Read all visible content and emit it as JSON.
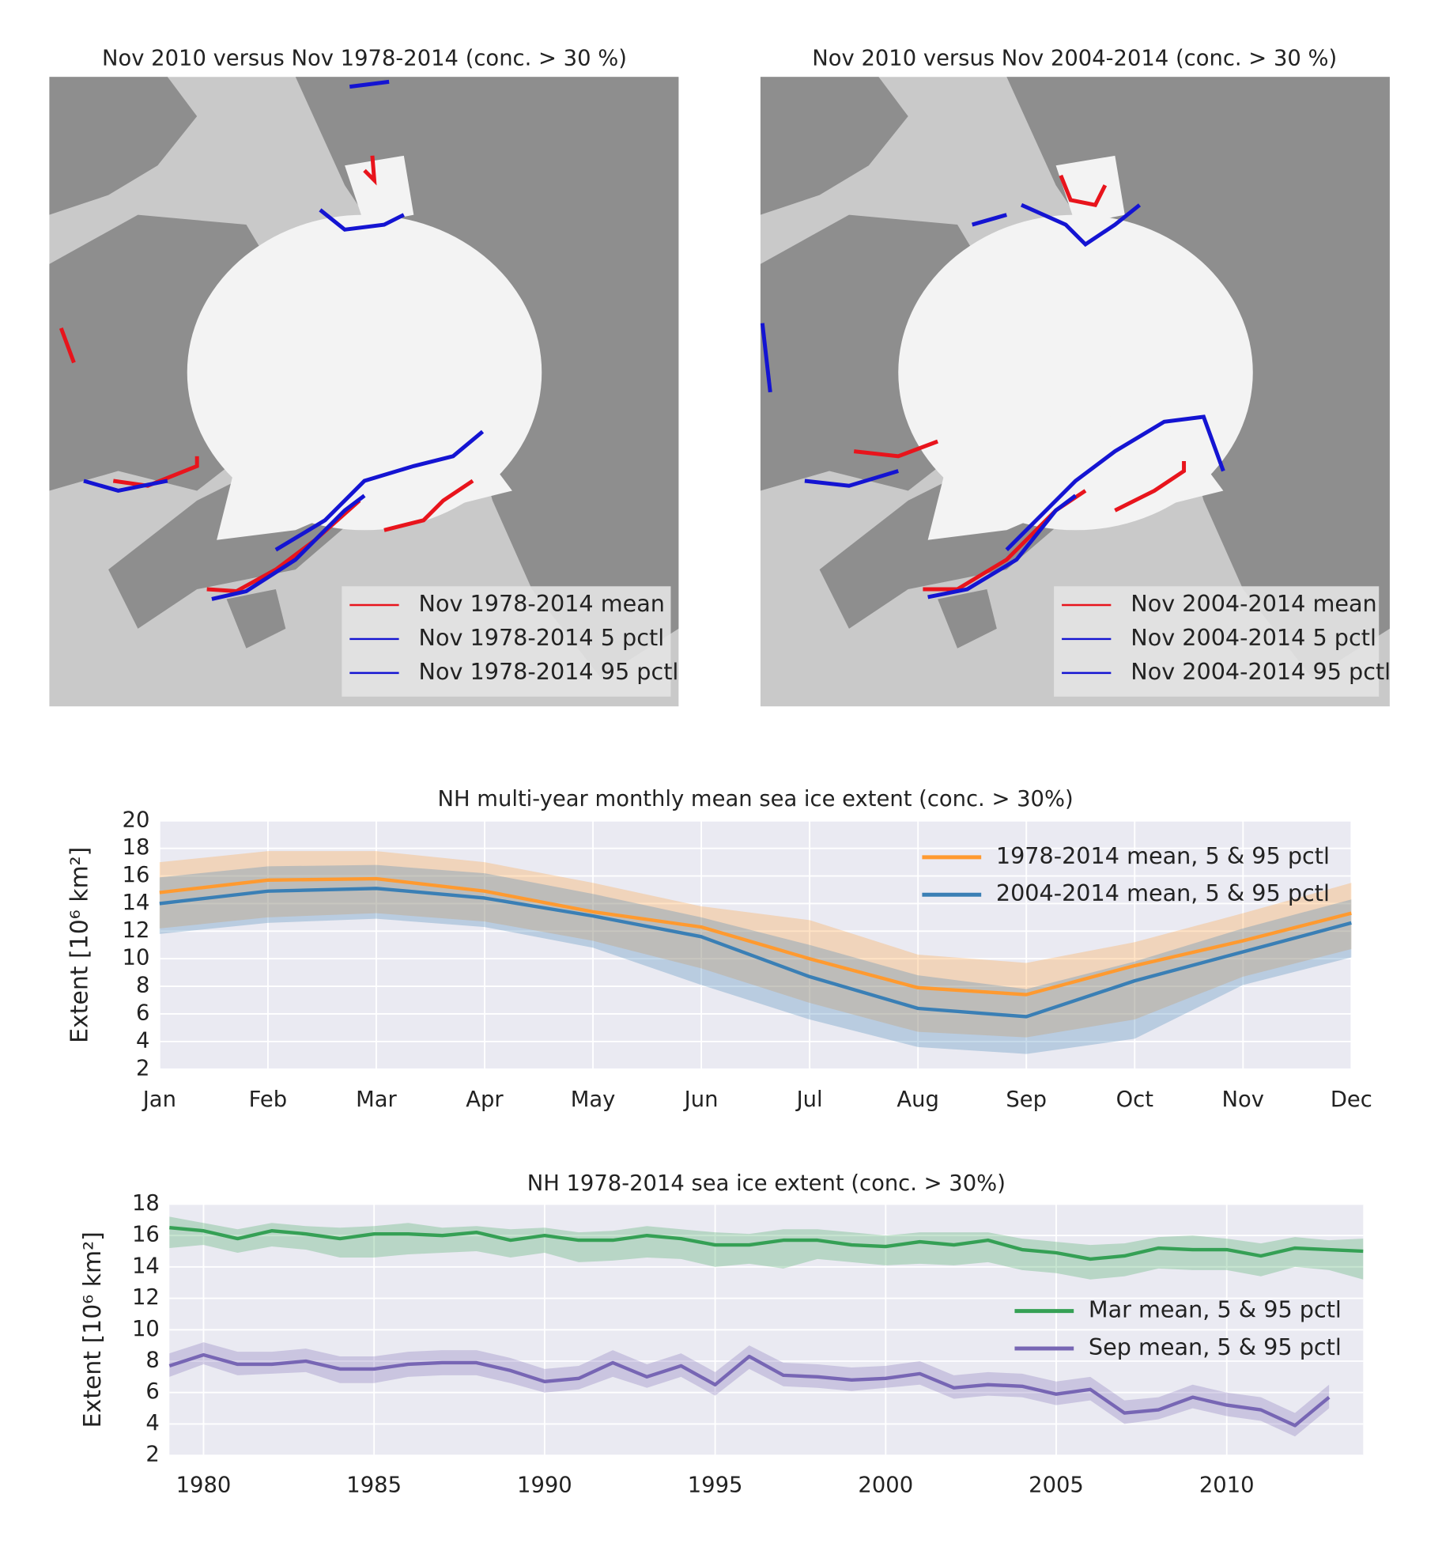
{
  "chart_data": [
    {
      "type": "map",
      "title": "Nov 2010 versus Nov 1978-2014 (conc. > 30 %)",
      "legend_entries": [
        {
          "label": "Nov 1978-2014 mean",
          "color": "#e8141c"
        },
        {
          "label": "Nov 1978-2014 5 pctl",
          "color": "#1414d2"
        },
        {
          "label": "Nov 1978-2014 95 pctl",
          "color": "#1414d2"
        }
      ]
    },
    {
      "type": "map",
      "title": "Nov 2010 versus Nov 2004-2014 (conc. > 30 %)",
      "legend_entries": [
        {
          "label": "Nov 2004-2014 mean",
          "color": "#e8141c"
        },
        {
          "label": "Nov 2004-2014 5 pctl",
          "color": "#1414d2"
        },
        {
          "label": "Nov 2004-2014 95 pctl",
          "color": "#1414d2"
        }
      ]
    },
    {
      "type": "line",
      "title": "NH multi-year monthly mean sea ice extent (conc. > 30%)",
      "y_label": "Extent [10⁶ km²]",
      "categories": [
        "Jan",
        "Feb",
        "Mar",
        "Apr",
        "May",
        "Jun",
        "Jul",
        "Aug",
        "Sep",
        "Oct",
        "Nov",
        "Dec"
      ],
      "series": [
        {
          "name": "1978-2014 mean, 5 & 95 pctl",
          "color": "#ff9a30",
          "values": [
            14.8,
            15.7,
            15.8,
            14.9,
            13.4,
            12.3,
            10.0,
            7.9,
            7.4,
            9.5,
            11.3,
            13.3
          ],
          "lower": [
            12.2,
            13.0,
            13.3,
            12.7,
            11.3,
            9.3,
            6.8,
            4.7,
            4.3,
            5.6,
            8.7,
            10.7
          ],
          "upper": [
            17.0,
            17.8,
            17.8,
            17.0,
            15.5,
            13.8,
            12.8,
            10.3,
            9.7,
            11.2,
            13.3,
            15.5
          ]
        },
        {
          "name": "2004-2014 mean, 5 & 95 pctl",
          "color": "#3a7fb5",
          "values": [
            14.0,
            14.9,
            15.1,
            14.4,
            13.1,
            11.6,
            8.7,
            6.4,
            5.8,
            8.4,
            10.5,
            12.6
          ],
          "lower": [
            11.8,
            12.6,
            12.9,
            12.3,
            10.8,
            8.1,
            5.6,
            3.6,
            3.1,
            4.2,
            8.1,
            10.1
          ],
          "upper": [
            15.9,
            16.7,
            16.8,
            16.2,
            14.7,
            13.0,
            11.0,
            8.8,
            7.8,
            9.8,
            12.2,
            14.3
          ]
        }
      ],
      "ylim": [
        2,
        20
      ],
      "yticks": [
        2,
        4,
        6,
        8,
        10,
        12,
        14,
        16,
        18,
        20
      ],
      "grid": true,
      "legend": "upper right"
    },
    {
      "type": "line",
      "title": "NH 1978-2014 sea ice extent (conc. > 30%)",
      "y_label": "Extent [10⁶ km²]",
      "x": [
        1979,
        1980,
        1981,
        1982,
        1983,
        1984,
        1985,
        1986,
        1987,
        1988,
        1989,
        1990,
        1991,
        1992,
        1993,
        1994,
        1995,
        1996,
        1997,
        1998,
        1999,
        2000,
        2001,
        2002,
        2003,
        2004,
        2005,
        2006,
        2007,
        2008,
        2009,
        2010,
        2011,
        2012,
        2013,
        2014
      ],
      "series": [
        {
          "name": "Mar mean, 5 & 95 pctl",
          "color": "#35a055",
          "values": [
            16.5,
            16.3,
            15.8,
            16.3,
            16.1,
            15.8,
            16.1,
            16.1,
            16.0,
            16.2,
            15.7,
            16.0,
            15.7,
            15.7,
            16.0,
            15.8,
            15.4,
            15.4,
            15.7,
            15.7,
            15.4,
            15.3,
            15.6,
            15.4,
            15.7,
            15.1,
            14.9,
            14.5,
            14.7,
            15.2,
            15.1,
            15.1,
            14.7,
            15.2,
            15.1,
            15.0
          ],
          "lower": [
            15.2,
            15.4,
            14.9,
            15.3,
            15.1,
            14.6,
            14.6,
            14.8,
            14.9,
            15.0,
            14.6,
            14.9,
            14.3,
            14.4,
            14.6,
            14.5,
            14.0,
            14.2,
            13.9,
            14.5,
            14.3,
            14.1,
            14.2,
            14.1,
            14.3,
            13.8,
            13.6,
            13.2,
            13.4,
            13.9,
            13.8,
            13.8,
            13.4,
            14.0,
            13.8,
            13.2
          ],
          "upper": [
            17.2,
            16.8,
            16.4,
            16.8,
            16.6,
            16.5,
            16.6,
            16.8,
            16.5,
            16.6,
            16.4,
            16.5,
            16.2,
            16.3,
            16.6,
            16.4,
            16.2,
            16.1,
            16.4,
            16.4,
            16.2,
            16.0,
            16.2,
            16.2,
            16.2,
            15.8,
            15.6,
            15.4,
            15.5,
            15.9,
            16.0,
            15.8,
            15.5,
            15.9,
            15.7,
            15.8
          ]
        },
        {
          "name": "Sep mean, 5 & 95 pctl",
          "color": "#7766b4",
          "values": [
            7.7,
            8.4,
            7.8,
            7.8,
            8.0,
            7.5,
            7.5,
            7.8,
            7.9,
            7.9,
            7.4,
            6.7,
            6.9,
            7.9,
            7.0,
            7.7,
            6.5,
            8.3,
            7.1,
            7.0,
            6.8,
            6.9,
            7.2,
            6.3,
            6.5,
            6.4,
            5.9,
            6.2,
            4.7,
            4.9,
            5.7,
            5.2,
            4.9,
            3.9,
            5.7,
            null
          ],
          "lower": [
            7.0,
            7.8,
            7.1,
            7.2,
            7.3,
            6.6,
            6.6,
            7.0,
            7.1,
            7.1,
            6.6,
            6.0,
            6.2,
            7.0,
            6.3,
            7.0,
            5.8,
            7.5,
            6.4,
            6.3,
            6.1,
            6.3,
            6.5,
            5.6,
            5.8,
            5.7,
            5.2,
            5.5,
            4.0,
            4.3,
            5.0,
            4.5,
            4.2,
            3.2,
            5.0,
            null
          ],
          "upper": [
            8.5,
            9.2,
            8.6,
            8.6,
            8.8,
            8.3,
            8.3,
            8.6,
            8.7,
            8.7,
            8.2,
            7.5,
            7.7,
            8.7,
            7.8,
            8.5,
            7.3,
            9.0,
            7.9,
            7.8,
            7.6,
            7.7,
            8.0,
            7.1,
            7.3,
            7.2,
            6.7,
            7.0,
            5.5,
            5.7,
            6.5,
            6.0,
            5.7,
            4.7,
            6.5,
            null
          ]
        }
      ],
      "xlim": [
        1979,
        2014
      ],
      "xticks": [
        1980,
        1985,
        1990,
        1995,
        2000,
        2005,
        2010
      ],
      "ylim": [
        2,
        18
      ],
      "yticks": [
        2,
        4,
        6,
        8,
        10,
        12,
        14,
        16,
        18
      ],
      "grid": true,
      "legend": "center right"
    }
  ]
}
